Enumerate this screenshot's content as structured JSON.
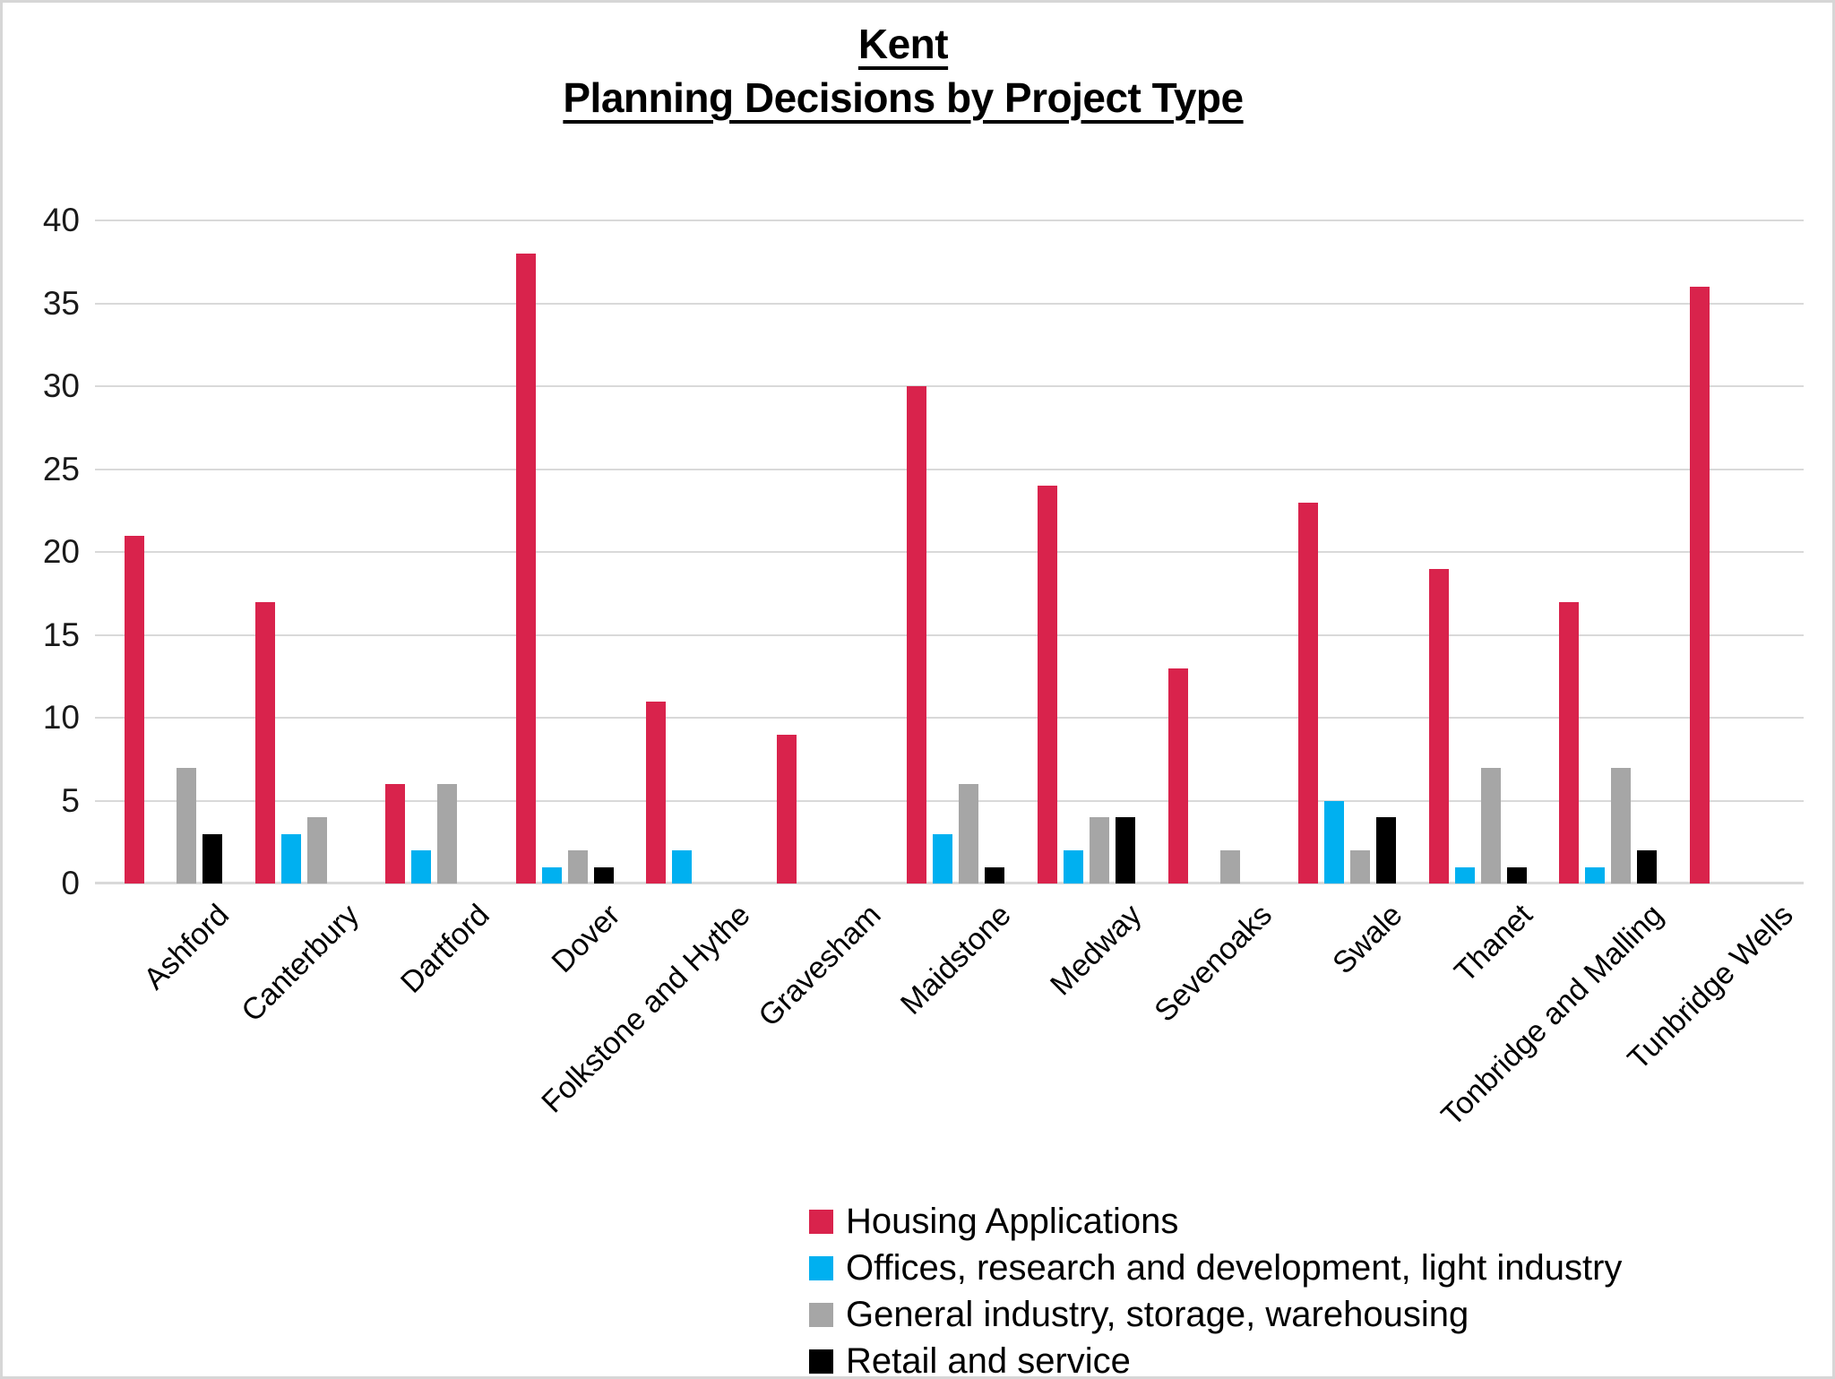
{
  "title": {
    "line1": "Kent",
    "line2": "Planning Decisions by Project Type"
  },
  "chart_data": {
    "type": "bar",
    "title": "Kent — Planning Decisions by Project Type",
    "categories": [
      "Ashford",
      "Canterbury",
      "Dartford",
      "Dover",
      "Folkstone and Hythe",
      "Gravesham",
      "Maidstone",
      "Medway",
      "Sevenoaks",
      "Swale",
      "Thanet",
      "Tonbridge and Malling",
      "Tunbridge Wells"
    ],
    "series": [
      {
        "name": "Housing Applications",
        "color": "#d9234c",
        "values": [
          21,
          17,
          6,
          38,
          11,
          9,
          30,
          24,
          13,
          23,
          19,
          17,
          36
        ]
      },
      {
        "name": "Offices, research and development, light industry",
        "color": "#00b0f0",
        "values": [
          0,
          3,
          2,
          1,
          2,
          0,
          3,
          2,
          0,
          5,
          1,
          1,
          0
        ]
      },
      {
        "name": "General industry, storage, warehousing",
        "color": "#a6a6a6",
        "values": [
          7,
          4,
          6,
          2,
          0,
          0,
          6,
          4,
          2,
          2,
          7,
          7,
          0
        ]
      },
      {
        "name": "Retail and service",
        "color": "#000000",
        "values": [
          3,
          0,
          0,
          1,
          0,
          0,
          1,
          4,
          0,
          4,
          1,
          2,
          0
        ]
      }
    ],
    "xlabel": "",
    "ylabel": "",
    "ylim": [
      0,
      40
    ],
    "yticks": [
      0,
      5,
      10,
      15,
      20,
      25,
      30,
      35,
      40
    ],
    "grid": true,
    "gridline_color": "#d9d9d9",
    "legend_position": "bottom",
    "legend": [
      "Housing Applications",
      "Offices, research and development, light industry",
      "General industry, storage, warehousing",
      "Retail and service"
    ]
  }
}
